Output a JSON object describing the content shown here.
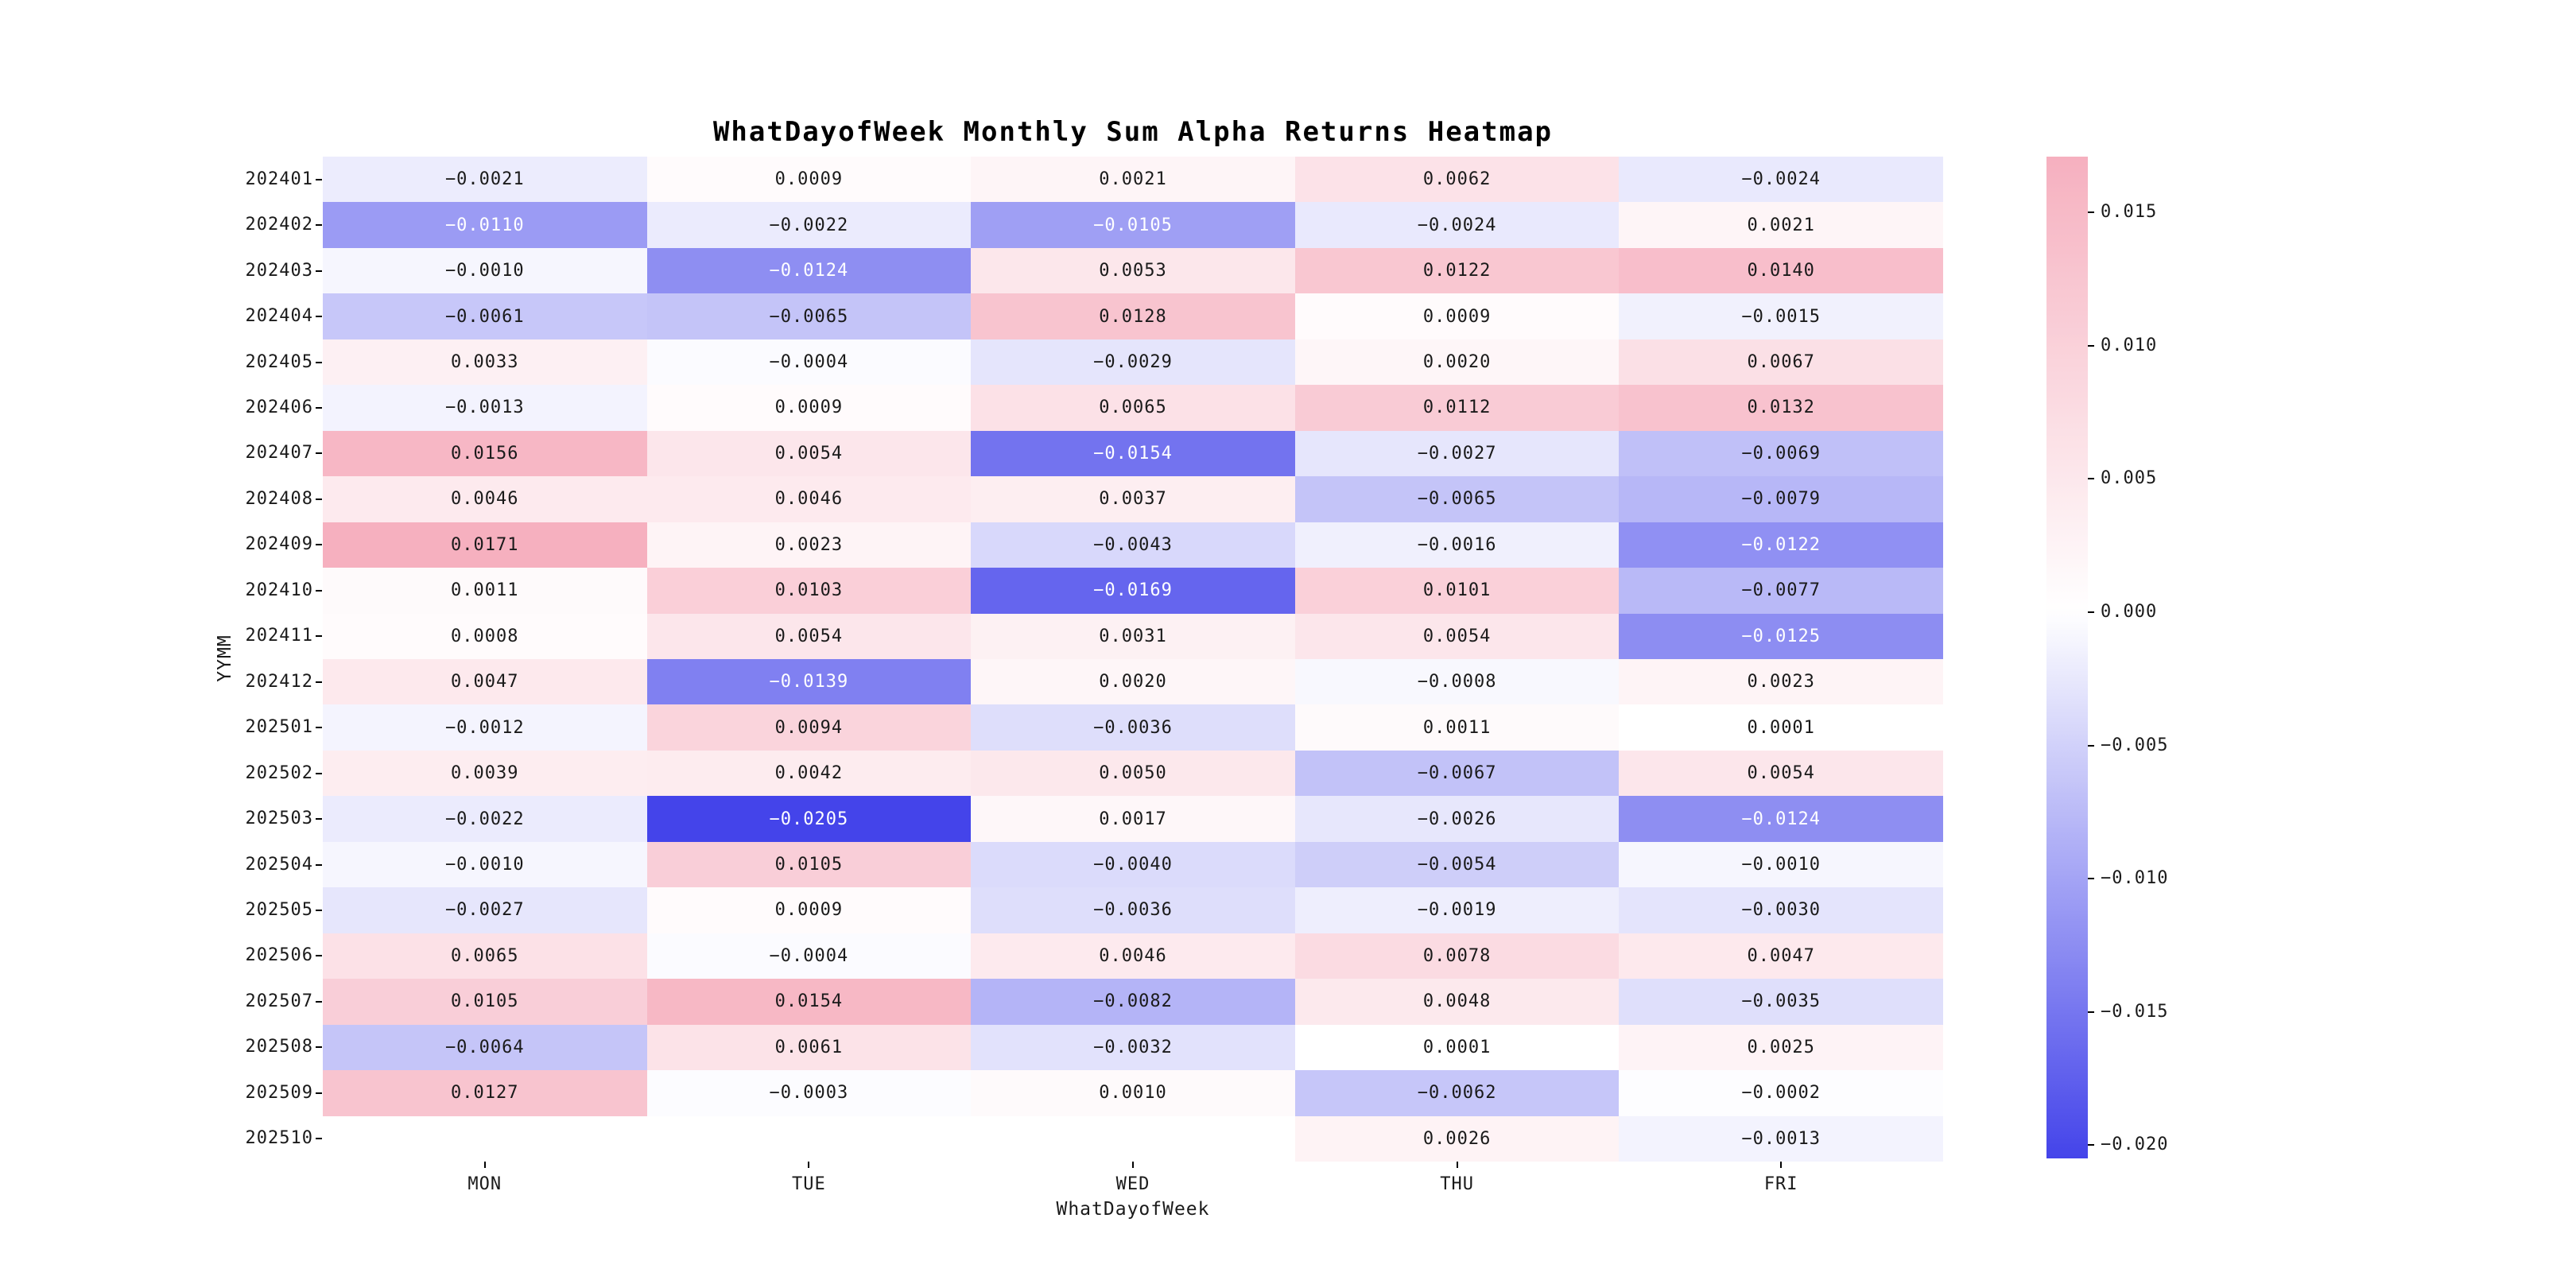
{
  "chart_data": {
    "type": "heatmap",
    "title": "WhatDayofWeek Monthly Sum Alpha Returns Heatmap",
    "xlabel": "WhatDayofWeek",
    "ylabel": "YYMM",
    "columns": [
      "MON",
      "TUE",
      "WED",
      "THU",
      "FRI"
    ],
    "rows": [
      "202401",
      "202402",
      "202403",
      "202404",
      "202405",
      "202406",
      "202407",
      "202408",
      "202409",
      "202410",
      "202411",
      "202412",
      "202501",
      "202502",
      "202503",
      "202504",
      "202505",
      "202506",
      "202507",
      "202508",
      "202509",
      "202510"
    ],
    "values": [
      [
        -0.0021,
        0.0009,
        0.0021,
        0.0062,
        -0.0024
      ],
      [
        -0.011,
        -0.0022,
        -0.0105,
        -0.0024,
        0.0021
      ],
      [
        -0.001,
        -0.0124,
        0.0053,
        0.0122,
        0.014
      ],
      [
        -0.0061,
        -0.0065,
        0.0128,
        0.0009,
        -0.0015
      ],
      [
        0.0033,
        -0.0004,
        -0.0029,
        0.002,
        0.0067
      ],
      [
        -0.0013,
        0.0009,
        0.0065,
        0.0112,
        0.0132
      ],
      [
        0.0156,
        0.0054,
        -0.0154,
        -0.0027,
        -0.0069
      ],
      [
        0.0046,
        0.0046,
        0.0037,
        -0.0065,
        -0.0079
      ],
      [
        0.0171,
        0.0023,
        -0.0043,
        -0.0016,
        -0.0122
      ],
      [
        0.0011,
        0.0103,
        -0.0169,
        0.0101,
        -0.0077
      ],
      [
        0.0008,
        0.0054,
        0.0031,
        0.0054,
        -0.0125
      ],
      [
        0.0047,
        -0.0139,
        0.002,
        -0.0008,
        0.0023
      ],
      [
        -0.0012,
        0.0094,
        -0.0036,
        0.0011,
        0.0001
      ],
      [
        0.0039,
        0.0042,
        0.005,
        -0.0067,
        0.0054
      ],
      [
        -0.0022,
        -0.0205,
        0.0017,
        -0.0026,
        -0.0124
      ],
      [
        -0.001,
        0.0105,
        -0.004,
        -0.0054,
        -0.001
      ],
      [
        -0.0027,
        0.0009,
        -0.0036,
        -0.0019,
        -0.003
      ],
      [
        0.0065,
        -0.0004,
        0.0046,
        0.0078,
        0.0047
      ],
      [
        0.0105,
        0.0154,
        -0.0082,
        0.0048,
        -0.0035
      ],
      [
        -0.0064,
        0.0061,
        -0.0032,
        0.0001,
        0.0025
      ],
      [
        0.0127,
        -0.0003,
        0.001,
        -0.0062,
        -0.0002
      ],
      [
        null,
        null,
        null,
        0.0026,
        -0.0013
      ]
    ],
    "vmin": -0.0205,
    "vmax": 0.0171,
    "colorbar_ticks": [
      0.015,
      0.01,
      0.005,
      0.0,
      -0.005,
      -0.01,
      -0.015,
      -0.02
    ],
    "color_positive": "#f6b0bf",
    "color_negative": "#4444ea",
    "color_zero": "#ffffff",
    "annotation_decimals": 4,
    "legend_position": "right-colorbar",
    "grid": false
  }
}
